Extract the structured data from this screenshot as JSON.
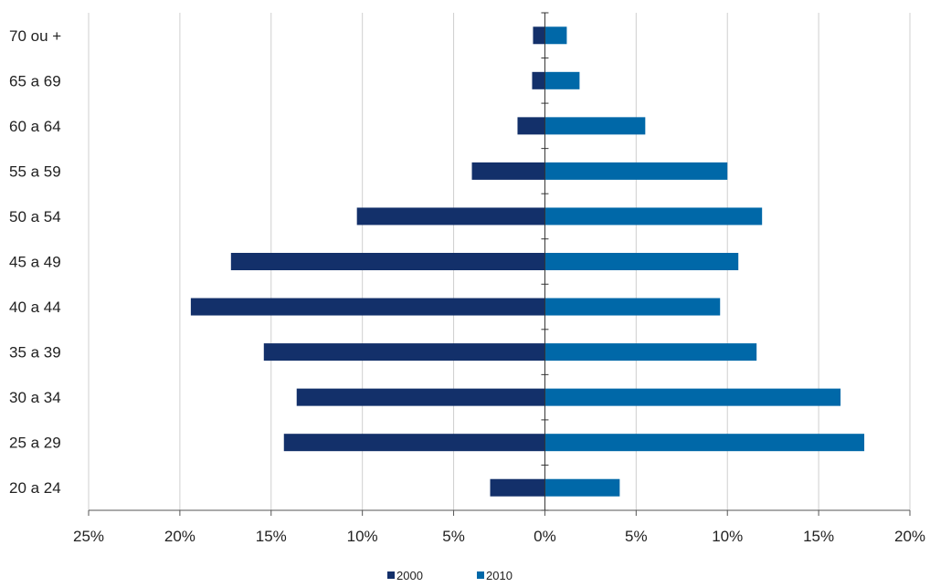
{
  "chart_data": {
    "type": "bar",
    "orientation": "horizontal",
    "layout": "population-pyramid",
    "categories": [
      "20 a 24",
      "25 a 29",
      "30 a 34",
      "35 a 39",
      "40 a 44",
      "45 a 49",
      "50 a 54",
      "55 a 59",
      "60 a 64",
      "65 a 69",
      "70 ou +"
    ],
    "series": [
      {
        "name": "2000",
        "side": "left",
        "color": "#13306a",
        "values": [
          3.0,
          14.3,
          13.6,
          15.4,
          19.4,
          17.2,
          10.3,
          4.0,
          1.5,
          0.7,
          0.65
        ]
      },
      {
        "name": "2010",
        "side": "right",
        "color": "#0068a8",
        "values": [
          4.1,
          17.5,
          16.2,
          11.6,
          9.6,
          10.6,
          11.9,
          10.0,
          5.5,
          1.9,
          1.2
        ]
      }
    ],
    "xlim": [
      -25,
      20
    ],
    "xticks": [
      -25,
      -20,
      -15,
      -10,
      -5,
      0,
      5,
      10,
      15,
      20
    ],
    "xtick_labels": [
      "25%",
      "20%",
      "15%",
      "10%",
      "5%",
      "0%",
      "5%",
      "10%",
      "15%",
      "20%"
    ],
    "grid": "vertical",
    "legend_position": "bottom",
    "title": "",
    "xlabel": "",
    "ylabel": ""
  }
}
